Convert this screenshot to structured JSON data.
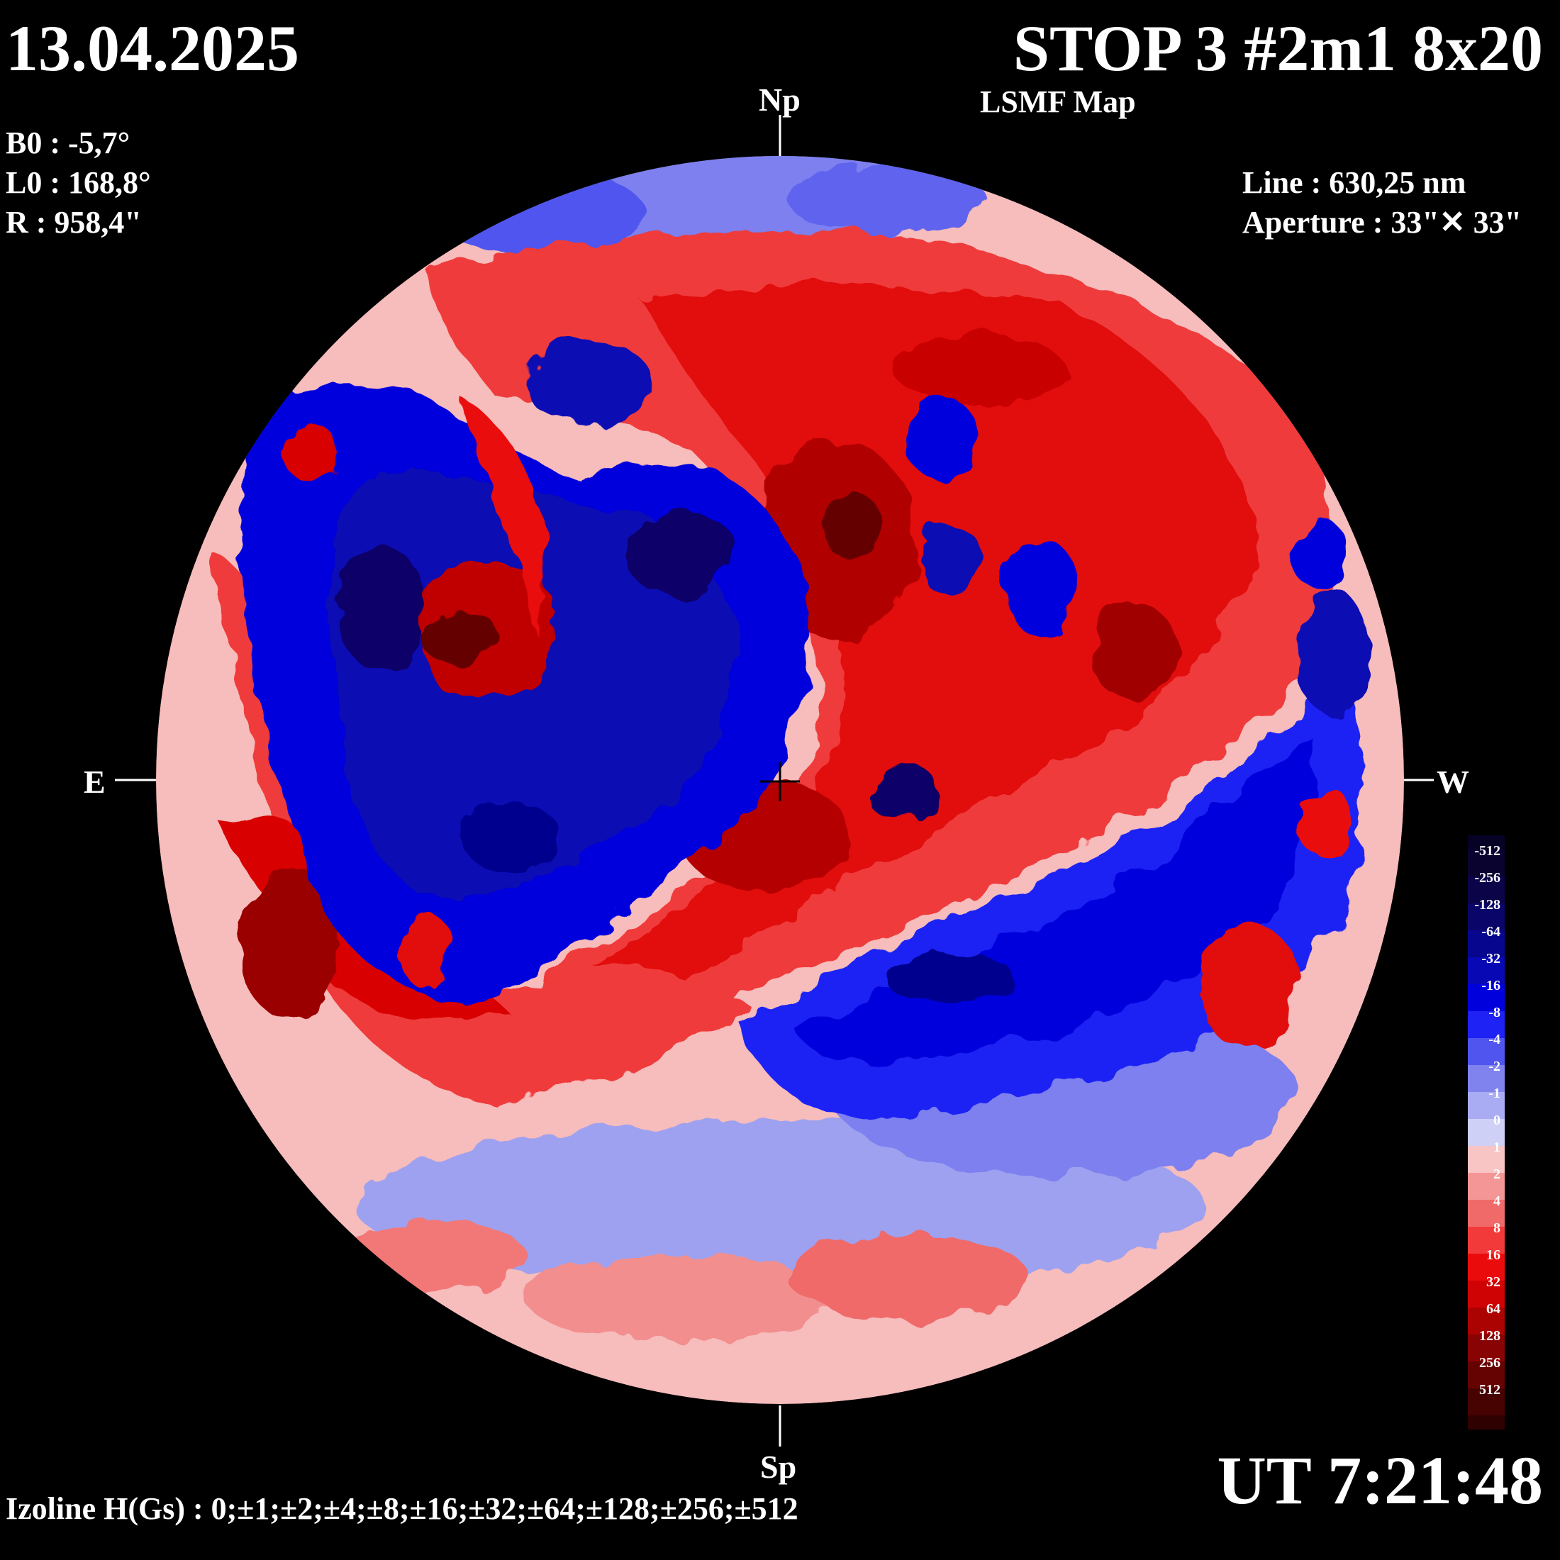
{
  "header": {
    "date": "13.04.2025",
    "title": "STOP 3 #2m1 8x20",
    "subtitle": "LSMF  Map"
  },
  "params": {
    "b0": "B0 : -5,7°",
    "l0": "L0 : 168,8°",
    "r": "R  : 958,4\""
  },
  "instrument": {
    "line": "Line :  630,25 nm",
    "aperture": "Aperture : 33\"✕ 33\""
  },
  "directions": {
    "north": "Np",
    "south": "Sp",
    "east": "E",
    "west": "W"
  },
  "footer": {
    "ut": "UT 7:21:48",
    "izoline": "Izoline H(Gs) : 0;±1;±2;±4;±8;±16;±32;±64;±128;±256;±512"
  },
  "legend": {
    "levels": [
      {
        "label": "-512",
        "color": "#0a0330"
      },
      {
        "label": "-256",
        "color": "#0b0448"
      },
      {
        "label": "-128",
        "color": "#0a0568"
      },
      {
        "label": "-64",
        "color": "#06068e"
      },
      {
        "label": "-32",
        "color": "#0808b4"
      },
      {
        "label": "-16",
        "color": "#0000dc"
      },
      {
        "label": "-8",
        "color": "#1e22f4"
      },
      {
        "label": "-4",
        "color": "#4f55ee"
      },
      {
        "label": "-2",
        "color": "#8083ee"
      },
      {
        "label": "-1",
        "color": "#a9acf2"
      },
      {
        "label": "0",
        "color": "#cfd0f6"
      },
      {
        "label": "1",
        "color": "#f8c4c4"
      },
      {
        "label": "2",
        "color": "#f59696"
      },
      {
        "label": "4",
        "color": "#f06a6a"
      },
      {
        "label": "8",
        "color": "#f23a3a"
      },
      {
        "label": "16",
        "color": "#ea0c0c"
      },
      {
        "label": "32",
        "color": "#cf0303"
      },
      {
        "label": "64",
        "color": "#ab0202"
      },
      {
        "label": "128",
        "color": "#880303"
      },
      {
        "label": "256",
        "color": "#650303"
      },
      {
        "label": "512",
        "color": "#470202"
      }
    ]
  }
}
